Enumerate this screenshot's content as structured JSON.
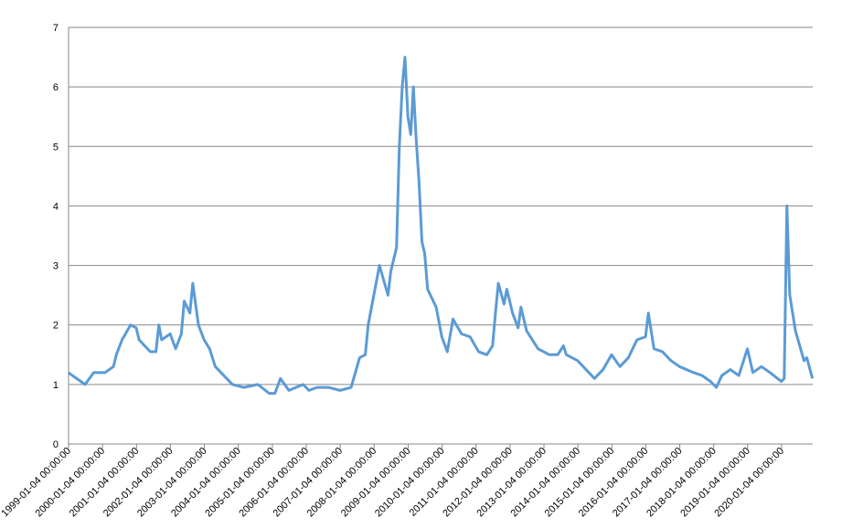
{
  "chart_data": {
    "type": "line",
    "x": [
      "1999-01-01 00:00:00",
      "1999-04-01 00:00:00",
      "1999-07-01 00:00:00",
      "1999-10-01 00:00:00",
      "2000-02-01 00:00:00",
      "2000-05-01 00:00:00",
      "2000-06-01 00:00:00",
      "2000-08-01 00:00:00",
      "2000-11-01 00:00:00",
      "2001-01-01 00:00:00",
      "2001-02-01 00:00:00",
      "2001-06-01 00:00:00",
      "2001-08-01 00:00:00",
      "2001-09-01 00:00:00",
      "2001-10-01 00:00:00",
      "2002-01-01 00:00:00",
      "2002-03-01 00:00:00",
      "2002-05-01 00:00:00",
      "2002-06-01 00:00:00",
      "2002-08-01 00:00:00",
      "2002-09-01 00:00:00",
      "2002-11-01 00:00:00",
      "2003-01-01 00:00:00",
      "2003-03-01 00:00:00",
      "2003-05-01 00:00:00",
      "2003-08-01 00:00:00",
      "2003-11-01 00:00:00",
      "2004-03-01 00:00:00",
      "2004-08-01 00:00:00",
      "2004-12-01 00:00:00",
      "2005-02-01 00:00:00",
      "2005-04-01 00:00:00",
      "2005-07-01 00:00:00",
      "2005-12-01 00:00:00",
      "2006-02-01 00:00:00",
      "2006-05-01 00:00:00",
      "2006-09-01 00:00:00",
      "2007-01-01 00:00:00",
      "2007-05-01 00:00:00",
      "2007-08-01 00:00:00",
      "2007-10-01 00:00:00",
      "2007-11-01 00:00:00",
      "2008-03-01 00:00:00",
      "2008-06-01 00:00:00",
      "2008-07-01 00:00:00",
      "2008-09-01 00:00:00",
      "2008-10-01 00:00:00",
      "2008-11-01 00:00:00",
      "2008-12-01 00:00:00",
      "2009-01-01 00:00:00",
      "2009-02-01 00:00:00",
      "2009-03-01 00:00:00",
      "2009-04-01 00:00:00",
      "2009-05-01 00:00:00",
      "2009-06-01 00:00:00",
      "2009-07-01 00:00:00",
      "2009-08-01 00:00:00",
      "2009-11-01 00:00:00",
      "2010-01-01 00:00:00",
      "2010-03-01 00:00:00",
      "2010-05-01 00:00:00",
      "2010-08-01 00:00:00",
      "2010-11-01 00:00:00",
      "2011-02-01 00:00:00",
      "2011-05-01 00:00:00",
      "2011-07-01 00:00:00",
      "2011-08-01 00:00:00",
      "2011-09-01 00:00:00",
      "2011-11-01 00:00:00",
      "2011-12-01 00:00:00",
      "2012-02-01 00:00:00",
      "2012-04-01 00:00:00",
      "2012-05-01 00:00:00",
      "2012-07-01 00:00:00",
      "2012-11-01 00:00:00",
      "2013-03-01 00:00:00",
      "2013-06-01 00:00:00",
      "2013-08-01 00:00:00",
      "2013-09-01 00:00:00",
      "2014-01-01 00:00:00",
      "2014-04-01 00:00:00",
      "2014-07-01 00:00:00",
      "2014-10-01 00:00:00",
      "2015-01-01 00:00:00",
      "2015-04-01 00:00:00",
      "2015-07-01 00:00:00",
      "2015-10-01 00:00:00",
      "2016-01-01 00:00:00",
      "2016-02-01 00:00:00",
      "2016-04-01 00:00:00",
      "2016-07-01 00:00:00",
      "2016-10-01 00:00:00",
      "2017-01-01 00:00:00",
      "2017-06-01 00:00:00",
      "2017-09-01 00:00:00",
      "2017-12-01 00:00:00",
      "2018-02-01 00:00:00",
      "2018-04-01 00:00:00",
      "2018-07-01 00:00:00",
      "2018-10-01 00:00:00",
      "2019-01-01 00:00:00",
      "2019-03-01 00:00:00",
      "2019-06-01 00:00:00",
      "2019-09-01 00:00:00",
      "2020-01-01 00:00:00",
      "2020-02-01 00:00:00",
      "2020-03-01 00:00:00",
      "2020-04-01 00:00:00",
      "2020-06-01 00:00:00",
      "2020-09-01 00:00:00",
      "2020-10-01 00:00:00",
      "2020-12-01 00:00:00"
    ],
    "series": [
      {
        "color": "#5b9bd5",
        "values": [
          1.2,
          1.1,
          1.0,
          1.2,
          1.2,
          1.3,
          1.5,
          1.75,
          2.0,
          1.95,
          1.75,
          1.55,
          1.55,
          2.0,
          1.75,
          1.85,
          1.6,
          1.85,
          2.4,
          2.2,
          2.7,
          2.0,
          1.75,
          1.6,
          1.3,
          1.15,
          1.0,
          0.95,
          1.0,
          0.85,
          0.85,
          1.1,
          0.9,
          1.0,
          0.9,
          0.95,
          0.95,
          0.9,
          0.95,
          1.45,
          1.5,
          2.0,
          3.0,
          2.5,
          2.9,
          3.3,
          5.0,
          6.0,
          6.5,
          5.5,
          5.2,
          6.0,
          5.1,
          4.4,
          3.4,
          3.2,
          2.6,
          2.3,
          1.8,
          1.55,
          2.1,
          1.85,
          1.8,
          1.55,
          1.5,
          1.65,
          2.2,
          2.7,
          2.35,
          2.6,
          2.2,
          1.95,
          2.3,
          1.9,
          1.6,
          1.5,
          1.5,
          1.65,
          1.5,
          1.4,
          1.25,
          1.1,
          1.25,
          1.5,
          1.3,
          1.45,
          1.75,
          1.8,
          2.2,
          1.6,
          1.55,
          1.4,
          1.3,
          1.2,
          1.15,
          1.05,
          0.95,
          1.15,
          1.25,
          1.15,
          1.6,
          1.2,
          1.3,
          1.2,
          1.05,
          1.1,
          4.0,
          2.5,
          1.9,
          1.4,
          1.45,
          1.1
        ]
      }
    ],
    "xlim": [
      "1999-01-04 00:00:00",
      "2020-12-04 00:00:00"
    ],
    "xticks": [
      "1999-01-04 00:00:00",
      "2000-01-04 00:00:00",
      "2001-01-04 00:00:00",
      "2002-01-04 00:00:00",
      "2003-01-04 00:00:00",
      "2004-01-04 00:00:00",
      "2005-01-04 00:00:00",
      "2006-01-04 00:00:00",
      "2007-01-04 00:00:00",
      "2008-01-04 00:00:00",
      "2009-01-04 00:00:00",
      "2010-01-04 00:00:00",
      "2011-01-04 00:00:00",
      "2012-01-04 00:00:00",
      "2013-01-04 00:00:00",
      "2014-01-04 00:00:00",
      "2015-01-04 00:00:00",
      "2016-01-04 00:00:00",
      "2017-01-04 00:00:00",
      "2018-01-04 00:00:00",
      "2019-01-04 00:00:00",
      "2020-01-04 00:00:00"
    ],
    "ylim": [
      0,
      7
    ],
    "yticks": [
      0,
      1,
      2,
      3,
      4,
      5,
      6,
      7
    ],
    "grid": true
  }
}
